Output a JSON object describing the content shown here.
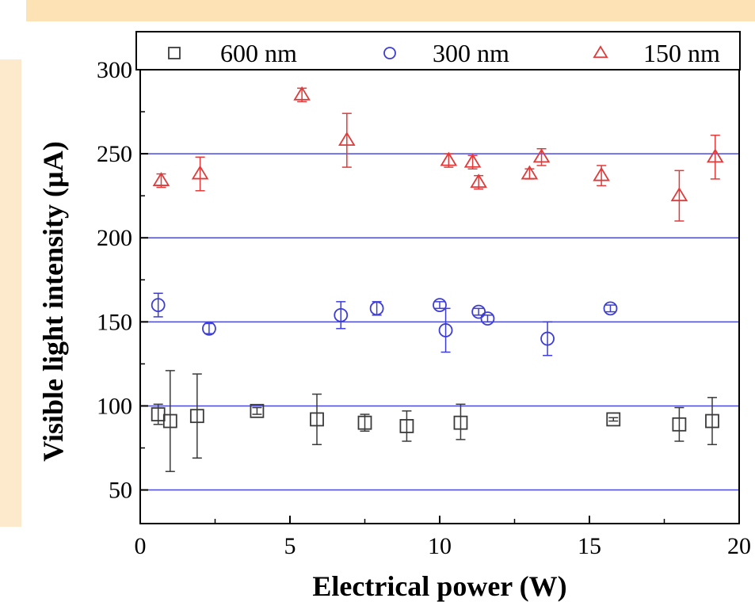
{
  "colors": {
    "s600": "#3a3a3a",
    "s300": "#3d3dd6",
    "s150": "#e03a3a",
    "grid": "#4a4ae0",
    "banner_top": "#fde2b6",
    "banner_left": "#fde9cc"
  },
  "chart_data": {
    "type": "scatter",
    "xlabel": "Electrical power (W)",
    "ylabel": "Visible light intensity (µA)",
    "xlim": [
      0,
      20
    ],
    "ylim": [
      30,
      300
    ],
    "xticks": [
      0,
      5,
      10,
      15,
      20
    ],
    "yticks": [
      50,
      100,
      150,
      200,
      250,
      300
    ],
    "grid": "horizontal",
    "legend_position": "top",
    "series": [
      {
        "name": "600 nm",
        "marker": "square",
        "points": [
          {
            "x": 0.6,
            "y": 95,
            "lo": 89,
            "hi": 101
          },
          {
            "x": 1.0,
            "y": 91,
            "lo": 61,
            "hi": 121
          },
          {
            "x": 1.9,
            "y": 94,
            "lo": 69,
            "hi": 119
          },
          {
            "x": 3.9,
            "y": 97,
            "lo": 95,
            "hi": 99
          },
          {
            "x": 5.9,
            "y": 92,
            "lo": 77,
            "hi": 107
          },
          {
            "x": 7.5,
            "y": 90,
            "lo": 85,
            "hi": 95
          },
          {
            "x": 8.9,
            "y": 88,
            "lo": 79,
            "hi": 97
          },
          {
            "x": 10.7,
            "y": 90,
            "lo": 80,
            "hi": 101
          },
          {
            "x": 15.8,
            "y": 92,
            "lo": 91,
            "hi": 93
          },
          {
            "x": 18.0,
            "y": 89,
            "lo": 79,
            "hi": 99
          },
          {
            "x": 19.1,
            "y": 91,
            "lo": 77,
            "hi": 105
          }
        ]
      },
      {
        "name": "300 nm",
        "marker": "circle",
        "points": [
          {
            "x": 0.6,
            "y": 160,
            "lo": 153,
            "hi": 167
          },
          {
            "x": 2.3,
            "y": 146,
            "lo": 143,
            "hi": 149
          },
          {
            "x": 6.7,
            "y": 154,
            "lo": 146,
            "hi": 162
          },
          {
            "x": 7.9,
            "y": 158,
            "lo": 154,
            "hi": 162
          },
          {
            "x": 10.0,
            "y": 160,
            "lo": 158,
            "hi": 162
          },
          {
            "x": 10.2,
            "y": 145,
            "lo": 132,
            "hi": 158
          },
          {
            "x": 11.3,
            "y": 156,
            "lo": 154,
            "hi": 158
          },
          {
            "x": 11.6,
            "y": 152,
            "lo": 150,
            "hi": 154
          },
          {
            "x": 13.6,
            "y": 140,
            "lo": 130,
            "hi": 150
          },
          {
            "x": 15.7,
            "y": 158,
            "lo": 156,
            "hi": 160
          }
        ]
      },
      {
        "name": "150 nm",
        "marker": "triangle",
        "points": [
          {
            "x": 0.7,
            "y": 234,
            "lo": 230,
            "hi": 238
          },
          {
            "x": 2.0,
            "y": 238,
            "lo": 228,
            "hi": 248
          },
          {
            "x": 5.4,
            "y": 285,
            "lo": 281,
            "hi": 289
          },
          {
            "x": 6.9,
            "y": 258,
            "lo": 242,
            "hi": 274
          },
          {
            "x": 10.3,
            "y": 246,
            "lo": 242,
            "hi": 250
          },
          {
            "x": 11.1,
            "y": 245,
            "lo": 241,
            "hi": 249
          },
          {
            "x": 11.3,
            "y": 233,
            "lo": 229,
            "hi": 237
          },
          {
            "x": 13.0,
            "y": 238,
            "lo": 235,
            "hi": 241
          },
          {
            "x": 13.4,
            "y": 248,
            "lo": 243,
            "hi": 253
          },
          {
            "x": 15.4,
            "y": 237,
            "lo": 231,
            "hi": 243
          },
          {
            "x": 18.0,
            "y": 225,
            "lo": 210,
            "hi": 240
          },
          {
            "x": 19.2,
            "y": 248,
            "lo": 235,
            "hi": 261
          }
        ]
      }
    ]
  }
}
